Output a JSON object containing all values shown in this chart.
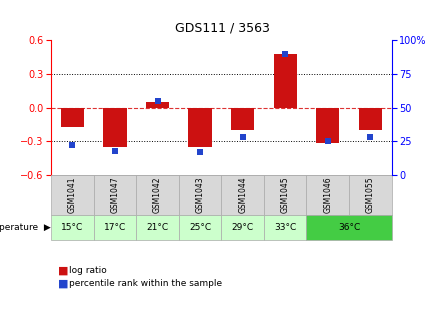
{
  "title": "GDS111 / 3563",
  "samples": [
    "GSM1041",
    "GSM1047",
    "GSM1042",
    "GSM1043",
    "GSM1044",
    "GSM1045",
    "GSM1046",
    "GSM1055"
  ],
  "temp_groups": [
    {
      "label": "15°C",
      "cols": [
        0
      ],
      "color": "#ccffcc"
    },
    {
      "label": "17°C",
      "cols": [
        1
      ],
      "color": "#ccffcc"
    },
    {
      "label": "21°C",
      "cols": [
        2
      ],
      "color": "#ccffcc"
    },
    {
      "label": "25°C",
      "cols": [
        3
      ],
      "color": "#ccffcc"
    },
    {
      "label": "29°C",
      "cols": [
        4
      ],
      "color": "#ccffcc"
    },
    {
      "label": "33°C",
      "cols": [
        5
      ],
      "color": "#ccffcc"
    },
    {
      "label": "36°C",
      "cols": [
        6,
        7
      ],
      "color": "#44cc44"
    }
  ],
  "log_ratio": [
    -0.17,
    -0.35,
    0.05,
    -0.35,
    -0.2,
    0.48,
    -0.32,
    -0.2
  ],
  "percentile": [
    22,
    18,
    55,
    17,
    28,
    90,
    25,
    28
  ],
  "ylim_left": [
    -0.6,
    0.6
  ],
  "ylim_right": [
    0,
    100
  ],
  "yticks_left": [
    -0.6,
    -0.3,
    0.0,
    0.3,
    0.6
  ],
  "yticks_right": [
    0,
    25,
    50,
    75,
    100
  ],
  "bar_color_red": "#cc1111",
  "bar_color_blue": "#2244cc",
  "zero_line_color": "#dd3333",
  "bg_color": "#ffffff",
  "sample_bg": "#d8d8d8",
  "temp_bg_light": "#ccffcc",
  "temp_bg_dark": "#44cc44"
}
